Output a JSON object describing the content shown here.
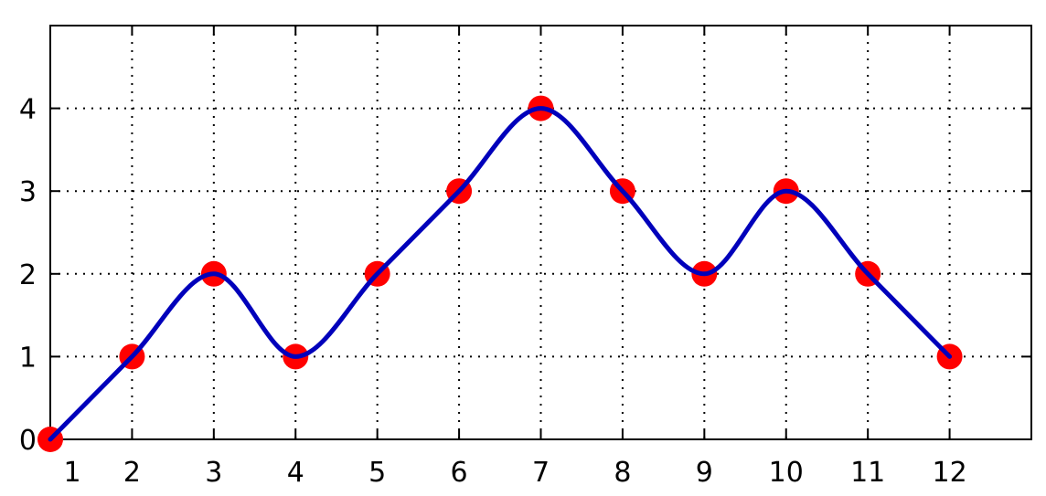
{
  "chart_data": {
    "type": "line",
    "title": "",
    "xlabel": "",
    "ylabel": "",
    "xlim": [
      1,
      13
    ],
    "ylim": [
      0,
      5
    ],
    "grid": true,
    "x_ticks": [
      1,
      2,
      3,
      4,
      5,
      6,
      7,
      8,
      9,
      10,
      11,
      12
    ],
    "y_ticks": [
      0,
      1,
      2,
      3,
      4
    ],
    "x_tick_labels": [
      "1",
      "2",
      "3",
      "4",
      "5",
      "6",
      "7",
      "8",
      "9",
      "10",
      "11",
      "12"
    ],
    "y_tick_labels": [
      "0",
      "1",
      "2",
      "3",
      "4"
    ],
    "series": [
      {
        "style": "markers",
        "marker": "circle",
        "color": "#ff0000",
        "x": [
          1,
          2,
          3,
          4,
          5,
          6,
          7,
          8,
          9,
          10,
          11,
          12
        ],
        "y": [
          0,
          1,
          2,
          1,
          2,
          3,
          4,
          3,
          2,
          3,
          2,
          1
        ]
      },
      {
        "style": "smooth-line",
        "color": "#0000bb",
        "x": [
          1,
          2,
          3,
          4,
          5,
          6,
          7,
          8,
          9,
          10,
          11,
          12
        ],
        "y": [
          0,
          1,
          2,
          1,
          2,
          3,
          4,
          3,
          2,
          3,
          2,
          1
        ]
      }
    ]
  }
}
